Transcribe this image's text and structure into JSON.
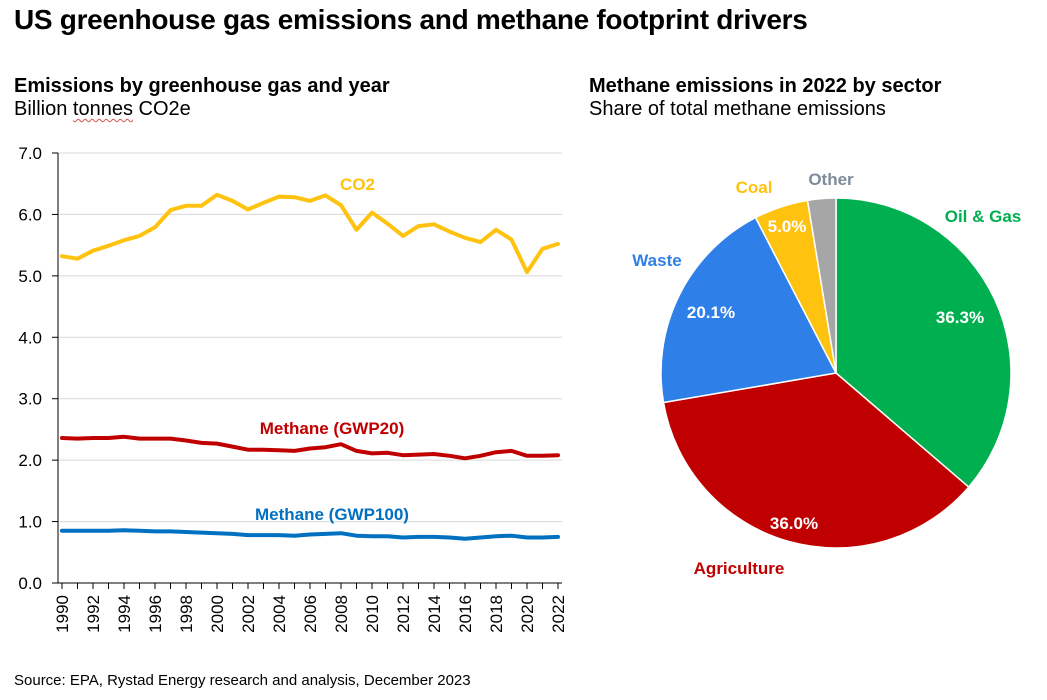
{
  "title": "US greenhouse gas emissions and methane footprint drivers",
  "left_panel": {
    "title": "Emissions by greenhouse gas and year",
    "subtitle_pre": "Billion ",
    "subtitle_word": "tonnes",
    "subtitle_post": " CO2e"
  },
  "right_panel": {
    "title": "Methane emissions in 2022 by sector",
    "subtitle": "Share of total methane emissions"
  },
  "source": "Source: EPA, Rystad Energy research and analysis, December 2023",
  "chart_data": [
    {
      "type": "line",
      "title": "Emissions by greenhouse gas and year",
      "subtitle": "Billion tonnes CO2e",
      "ylim": [
        0,
        7
      ],
      "yticks": [
        "0.0",
        "1.0",
        "2.0",
        "3.0",
        "4.0",
        "5.0",
        "6.0",
        "7.0"
      ],
      "xlim": [
        1990,
        2022
      ],
      "xticks": [
        "1990",
        "1992",
        "1994",
        "1996",
        "1998",
        "2000",
        "2002",
        "2004",
        "2006",
        "2008",
        "2010",
        "2012",
        "2014",
        "2016",
        "2018",
        "2020",
        "2022"
      ],
      "grid": true,
      "x": [
        1990,
        1991,
        1992,
        1993,
        1994,
        1995,
        1996,
        1997,
        1998,
        1999,
        2000,
        2001,
        2002,
        2003,
        2004,
        2005,
        2006,
        2007,
        2008,
        2009,
        2010,
        2011,
        2012,
        2013,
        2014,
        2015,
        2016,
        2017,
        2018,
        2019,
        2020,
        2021,
        2022
      ],
      "series": [
        {
          "name": "CO2",
          "color": "#ffc20e",
          "values": [
            5.32,
            5.28,
            5.41,
            5.49,
            5.58,
            5.65,
            5.79,
            6.07,
            6.14,
            6.14,
            6.32,
            6.22,
            6.08,
            6.19,
            6.29,
            6.28,
            6.22,
            6.31,
            6.15,
            5.75,
            6.03,
            5.85,
            5.65,
            5.81,
            5.84,
            5.72,
            5.62,
            5.55,
            5.75,
            5.59,
            5.06,
            5.44,
            5.52
          ]
        },
        {
          "name": "Methane (GWP20)",
          "color": "#c00000",
          "values": [
            2.36,
            2.35,
            2.36,
            2.36,
            2.38,
            2.35,
            2.35,
            2.35,
            2.32,
            2.28,
            2.27,
            2.22,
            2.17,
            2.17,
            2.16,
            2.15,
            2.19,
            2.21,
            2.26,
            2.15,
            2.11,
            2.12,
            2.08,
            2.09,
            2.1,
            2.07,
            2.03,
            2.07,
            2.13,
            2.15,
            2.07,
            2.07,
            2.08
          ]
        },
        {
          "name": "Methane (GWP100)",
          "color": "#0070c0",
          "values": [
            0.85,
            0.85,
            0.85,
            0.85,
            0.86,
            0.85,
            0.84,
            0.84,
            0.83,
            0.82,
            0.81,
            0.8,
            0.78,
            0.78,
            0.78,
            0.77,
            0.79,
            0.8,
            0.81,
            0.77,
            0.76,
            0.76,
            0.74,
            0.75,
            0.75,
            0.74,
            0.72,
            0.74,
            0.76,
            0.77,
            0.74,
            0.74,
            0.75
          ]
        }
      ]
    },
    {
      "type": "pie",
      "title": "Methane emissions in 2022 by sector",
      "subtitle": "Share of total methane emissions",
      "slices": [
        {
          "name": "Oil & Gas",
          "value": 36.3,
          "label": "36.3%",
          "color": "#00b050"
        },
        {
          "name": "Agriculture",
          "value": 36.0,
          "label": "36.0%",
          "color": "#c00000"
        },
        {
          "name": "Waste",
          "value": 20.1,
          "label": "20.1%",
          "color": "#2f7fe8"
        },
        {
          "name": "Coal",
          "value": 5.0,
          "label": "5.0%",
          "color": "#ffc20e"
        },
        {
          "name": "Other",
          "value": 2.6,
          "label": "",
          "color": "#a6a6a6"
        }
      ],
      "name_colors": {
        "Oil & Gas": "#00b050",
        "Agriculture": "#c00000",
        "Waste": "#2f7fe8",
        "Coal": "#ffc20e",
        "Other": "#7f8c9a"
      }
    }
  ]
}
